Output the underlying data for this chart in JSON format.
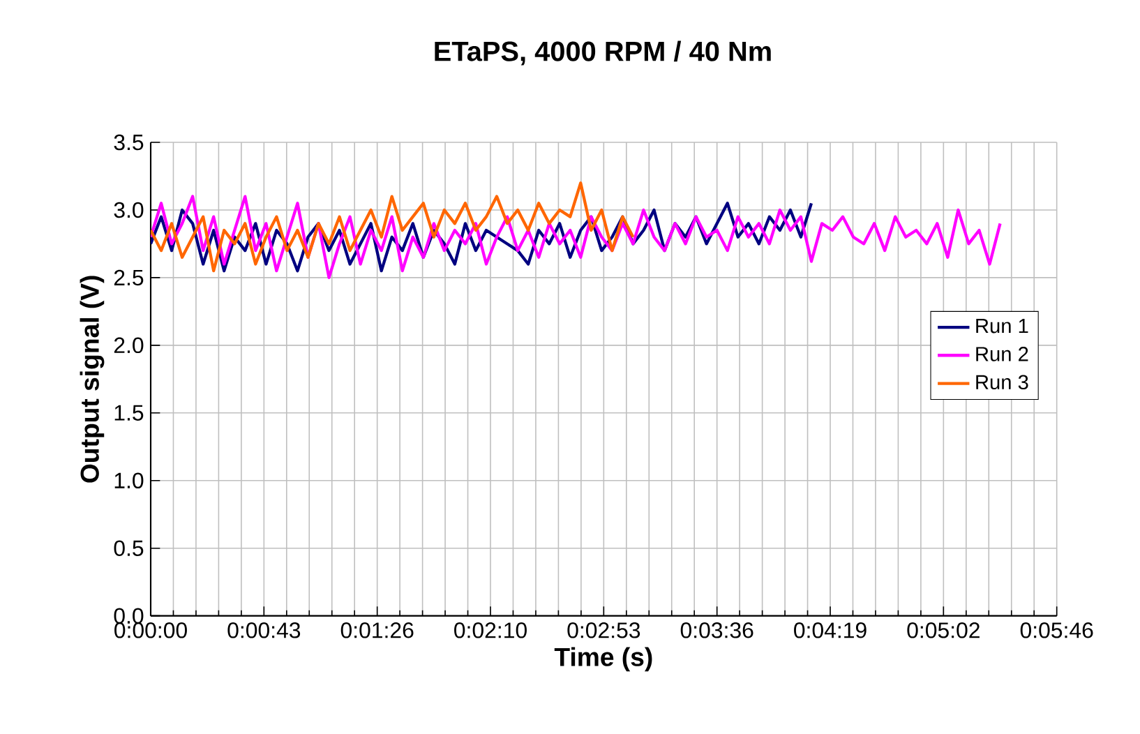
{
  "chart_data": {
    "type": "line",
    "title": "ETaPS, 4000 RPM / 40 Nm",
    "xlabel": "Time (s)",
    "ylabel": "Output signal (V)",
    "xlim": [
      0,
      345.6
    ],
    "ylim": [
      0,
      3.5
    ],
    "xticks": [
      {
        "value": 0,
        "label": "0:00:00"
      },
      {
        "value": 43.2,
        "label": "0:00:43"
      },
      {
        "value": 86.4,
        "label": "0:01:26"
      },
      {
        "value": 129.6,
        "label": "0:02:10"
      },
      {
        "value": 172.8,
        "label": "0:02:53"
      },
      {
        "value": 216,
        "label": "0:03:36"
      },
      {
        "value": 259.2,
        "label": "0:04:19"
      },
      {
        "value": 302.4,
        "label": "0:05:02"
      },
      {
        "value": 345.6,
        "label": "0:05:46"
      }
    ],
    "yticks": [
      {
        "value": 0,
        "label": "0.0"
      },
      {
        "value": 0.5,
        "label": "0.5"
      },
      {
        "value": 1,
        "label": "1.0"
      },
      {
        "value": 1.5,
        "label": "1.5"
      },
      {
        "value": 2,
        "label": "2.0"
      },
      {
        "value": 2.5,
        "label": "2.5"
      },
      {
        "value": 3,
        "label": "3.0"
      },
      {
        "value": 3.5,
        "label": "3.5"
      }
    ],
    "grid": true,
    "legend": "right",
    "marker": "none",
    "line_style": "solid",
    "series": [
      {
        "name": "Run 1",
        "color": "#000080",
        "x": [
          0,
          4,
          8,
          12,
          16,
          20,
          24,
          28,
          32,
          36,
          40,
          44,
          48,
          52,
          56,
          60,
          64,
          68,
          72,
          76,
          80,
          84,
          88,
          92,
          96,
          100,
          104,
          108,
          112,
          116,
          120,
          124,
          128,
          132,
          136,
          140,
          144,
          148,
          152,
          156,
          160,
          164,
          168,
          172,
          176,
          180,
          184,
          188,
          192,
          196,
          200,
          204,
          208,
          212,
          216,
          220,
          224,
          228,
          232,
          236,
          240,
          244,
          248,
          252
        ],
        "values": [
          2.75,
          2.95,
          2.7,
          3.0,
          2.9,
          2.6,
          2.85,
          2.55,
          2.8,
          2.7,
          2.9,
          2.6,
          2.85,
          2.75,
          2.55,
          2.8,
          2.9,
          2.7,
          2.85,
          2.6,
          2.75,
          2.9,
          2.55,
          2.8,
          2.7,
          2.9,
          2.65,
          2.85,
          2.75,
          2.6,
          2.9,
          2.7,
          2.85,
          2.8,
          2.75,
          2.7,
          2.6,
          2.85,
          2.75,
          2.9,
          2.65,
          2.85,
          2.95,
          2.7,
          2.8,
          2.95,
          2.75,
          2.85,
          3.0,
          2.7,
          2.9,
          2.8,
          2.95,
          2.75,
          2.9,
          3.05,
          2.8,
          2.9,
          2.75,
          2.95,
          2.85,
          3.0,
          2.8,
          3.05
        ]
      },
      {
        "name": "Run 2",
        "color": "#ff00ff",
        "x": [
          0,
          4,
          8,
          12,
          16,
          20,
          24,
          28,
          32,
          36,
          40,
          44,
          48,
          52,
          56,
          60,
          64,
          68,
          72,
          76,
          80,
          84,
          88,
          92,
          96,
          100,
          104,
          108,
          112,
          116,
          120,
          124,
          128,
          132,
          136,
          140,
          144,
          148,
          152,
          156,
          160,
          164,
          168,
          172,
          176,
          180,
          184,
          188,
          192,
          196,
          200,
          204,
          208,
          212,
          216,
          220,
          224,
          228,
          232,
          236,
          240,
          244,
          248,
          252,
          256,
          260,
          264,
          268,
          272,
          276,
          280,
          284,
          288,
          292,
          296,
          300,
          304,
          308,
          312,
          316,
          320,
          324
        ],
        "values": [
          2.8,
          3.05,
          2.75,
          2.9,
          3.1,
          2.7,
          2.95,
          2.6,
          2.85,
          3.1,
          2.7,
          2.9,
          2.55,
          2.8,
          3.05,
          2.65,
          2.9,
          2.5,
          2.75,
          2.95,
          2.6,
          2.85,
          2.7,
          2.95,
          2.55,
          2.8,
          2.65,
          2.9,
          2.7,
          2.85,
          2.75,
          2.9,
          2.6,
          2.8,
          2.95,
          2.7,
          2.85,
          2.65,
          2.9,
          2.75,
          2.85,
          2.65,
          2.95,
          2.8,
          2.7,
          2.9,
          2.75,
          3.0,
          2.8,
          2.7,
          2.9,
          2.75,
          2.95,
          2.8,
          2.85,
          2.7,
          2.95,
          2.8,
          2.9,
          2.75,
          3.0,
          2.85,
          2.95,
          2.62,
          2.9,
          2.85,
          2.95,
          2.8,
          2.75,
          2.9,
          2.7,
          2.95,
          2.8,
          2.85,
          2.75,
          2.9,
          2.65,
          3.0,
          2.75,
          2.85,
          2.6,
          2.9
        ]
      },
      {
        "name": "Run 3",
        "color": "#ff6600",
        "x": [
          0,
          4,
          8,
          12,
          16,
          20,
          24,
          28,
          32,
          36,
          40,
          44,
          48,
          52,
          56,
          60,
          64,
          68,
          72,
          76,
          80,
          84,
          88,
          92,
          96,
          100,
          104,
          108,
          112,
          116,
          120,
          124,
          128,
          132,
          136,
          140,
          144,
          148,
          152,
          156,
          160,
          164,
          168,
          172,
          176,
          180,
          184
        ],
        "values": [
          2.85,
          2.7,
          2.9,
          2.65,
          2.8,
          2.95,
          2.55,
          2.85,
          2.75,
          2.9,
          2.6,
          2.8,
          2.95,
          2.7,
          2.85,
          2.65,
          2.9,
          2.75,
          2.95,
          2.7,
          2.85,
          3.0,
          2.8,
          3.1,
          2.85,
          2.95,
          3.05,
          2.8,
          3.0,
          2.9,
          3.05,
          2.85,
          2.95,
          3.1,
          2.9,
          3.0,
          2.85,
          3.05,
          2.9,
          3.0,
          2.95,
          3.2,
          2.85,
          3.0,
          2.7,
          2.95,
          2.8
        ]
      }
    ]
  }
}
